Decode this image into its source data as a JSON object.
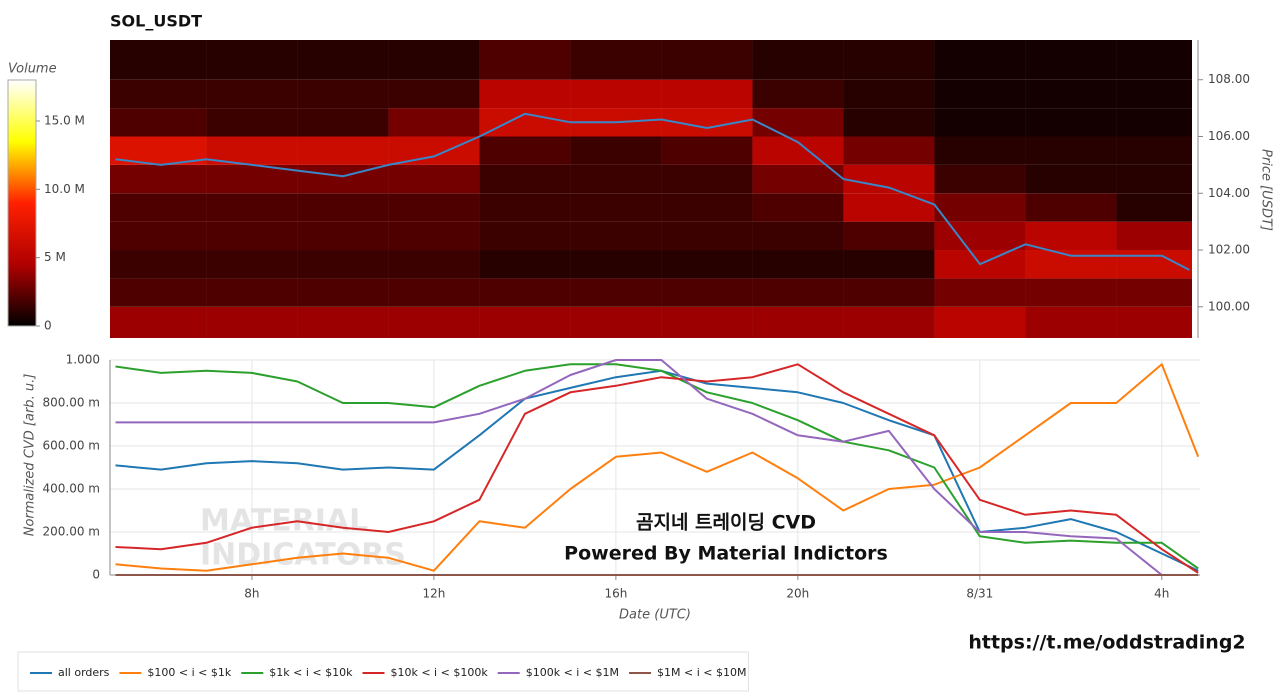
{
  "chart_data": [
    {
      "type": "heatmap",
      "title": "SOL_USDT",
      "xlim": [
        4.88,
        28.66
      ],
      "ylim": [
        98.9,
        109.4
      ],
      "ylabel": "Price [USDT]",
      "yticks": [
        {
          "value": 100,
          "label": "100.00"
        },
        {
          "value": 102,
          "label": "102.00"
        },
        {
          "value": 104,
          "label": "104.00"
        },
        {
          "value": 106,
          "label": "106.00"
        },
        {
          "value": 108,
          "label": "108.00"
        }
      ],
      "x_edges": [
        4.88,
        7,
        9,
        11,
        13,
        15,
        17,
        19,
        21,
        23,
        25,
        27,
        28.66
      ],
      "y_edges": [
        98.9,
        100,
        101,
        102,
        103,
        104,
        105,
        106,
        107,
        108,
        109.4
      ],
      "values": [
        [
          4,
          4,
          4,
          4,
          4,
          4,
          4,
          4,
          4,
          5,
          4,
          4
        ],
        [
          2,
          2,
          2,
          2,
          2,
          2,
          2,
          2,
          2,
          3,
          3,
          3
        ],
        [
          1.5,
          1.5,
          1.5,
          1.5,
          1,
          1,
          1,
          1,
          1,
          5,
          6,
          6
        ],
        [
          2,
          2,
          2,
          2,
          1.5,
          1.5,
          1.5,
          1.5,
          2,
          4,
          5,
          4
        ],
        [
          2,
          2,
          2,
          2,
          1.5,
          1.5,
          1.5,
          2,
          5,
          3,
          2,
          1
        ],
        [
          3,
          3,
          3,
          3,
          1.5,
          1.5,
          1.5,
          3,
          5,
          1.5,
          1,
          1
        ],
        [
          7,
          6,
          6,
          6,
          2,
          1.5,
          2,
          5,
          3,
          1,
          1,
          1
        ],
        [
          2,
          1.5,
          1.5,
          3,
          6,
          6,
          6,
          3,
          1,
          0.5,
          0.5,
          0.5
        ],
        [
          1.5,
          1.5,
          1.5,
          1.5,
          5,
          5,
          5,
          1.5,
          1,
          0.5,
          0.5,
          0.5
        ],
        [
          1,
          1,
          1,
          1,
          2,
          1.5,
          1.5,
          1,
          1,
          0.5,
          0.5,
          0.5
        ]
      ],
      "colormap": [
        "#000000",
        "#b00000",
        "#ff2000",
        "#ffff00",
        "#ffffff"
      ],
      "colorbar": {
        "label": "Volume",
        "lim": [
          0,
          18
        ],
        "ticks": [
          0,
          {
            "value": 5,
            "label": "5 M"
          },
          {
            "value": 10,
            "label": "10.0 M"
          },
          {
            "value": 15,
            "label": "15.0 M"
          }
        ]
      },
      "price_line": {
        "color": "#3a86c8",
        "x": [
          5,
          6,
          7,
          8,
          9,
          10,
          11,
          12,
          13,
          14,
          15,
          16,
          17,
          18,
          19,
          20,
          21,
          22,
          23,
          24,
          25,
          26,
          27,
          28,
          28.6
        ],
        "values": [
          105.2,
          105.0,
          105.2,
          105.0,
          104.8,
          104.6,
          105.0,
          105.3,
          106.0,
          106.8,
          106.5,
          106.5,
          106.6,
          106.3,
          106.6,
          105.8,
          104.5,
          104.2,
          103.6,
          101.5,
          102.2,
          101.8,
          101.8,
          101.8,
          101.3
        ]
      }
    },
    {
      "type": "line",
      "xlabel": "Date (UTC)",
      "ylabel": "Normalized CVD [arb. u.]",
      "xlim": [
        4.88,
        28.84
      ],
      "ylim": [
        0,
        1
      ],
      "grid": true,
      "legend": "bottom",
      "xticks": [
        {
          "value": 8,
          "label": "8h"
        },
        {
          "value": 12,
          "label": "12h"
        },
        {
          "value": 16,
          "label": "16h"
        },
        {
          "value": 20,
          "label": "20h"
        },
        {
          "value": 24,
          "label": "8/31"
        },
        {
          "value": 28,
          "label": "4h"
        }
      ],
      "yticks": [
        0,
        {
          "value": 0.2,
          "label": "200.00 m"
        },
        {
          "value": 0.4,
          "label": "400.00 m"
        },
        {
          "value": 0.6,
          "label": "600.00 m"
        },
        {
          "value": 0.8,
          "label": "800.00 m"
        },
        {
          "value": 1,
          "label": "1.000"
        }
      ],
      "x": [
        5,
        6,
        7,
        8,
        9,
        10,
        11,
        12,
        13,
        14,
        15,
        16,
        17,
        18,
        19,
        20,
        21,
        22,
        23,
        24,
        25,
        26,
        27,
        28,
        28.8
      ],
      "series": [
        {
          "name": "all orders",
          "color": "#1f77b4",
          "values": [
            0.51,
            0.49,
            0.52,
            0.53,
            0.52,
            0.49,
            0.5,
            0.49,
            0.65,
            0.82,
            0.87,
            0.92,
            0.95,
            0.89,
            0.87,
            0.85,
            0.8,
            0.72,
            0.65,
            0.2,
            0.22,
            0.26,
            0.2,
            0.1,
            0.02
          ]
        },
        {
          "name": "$100 < i < $1k",
          "color": "#ff7f0e",
          "values": [
            0.05,
            0.03,
            0.02,
            0.05,
            0.08,
            0.1,
            0.08,
            0.02,
            0.25,
            0.22,
            0.4,
            0.55,
            0.57,
            0.48,
            0.57,
            0.45,
            0.3,
            0.4,
            0.42,
            0.5,
            0.65,
            0.8,
            0.8,
            0.98,
            0.55
          ]
        },
        {
          "name": "$1k < i < $10k",
          "color": "#2ca02c",
          "values": [
            0.97,
            0.94,
            0.95,
            0.94,
            0.9,
            0.8,
            0.8,
            0.78,
            0.88,
            0.95,
            0.98,
            0.98,
            0.95,
            0.85,
            0.8,
            0.72,
            0.62,
            0.58,
            0.5,
            0.18,
            0.15,
            0.16,
            0.15,
            0.15,
            0.03
          ]
        },
        {
          "name": "$10k < i < $100k",
          "color": "#d62728",
          "values": [
            0.13,
            0.12,
            0.15,
            0.22,
            0.25,
            0.22,
            0.2,
            0.25,
            0.35,
            0.75,
            0.85,
            0.88,
            0.92,
            0.9,
            0.92,
            0.98,
            0.85,
            0.75,
            0.65,
            0.35,
            0.28,
            0.3,
            0.28,
            0.12,
            0.01
          ]
        },
        {
          "name": "$100k < i < $1M",
          "color": "#9467bd",
          "values": [
            0.71,
            0.71,
            0.71,
            0.71,
            0.71,
            0.71,
            0.71,
            0.71,
            0.75,
            0.82,
            0.93,
            1,
            1,
            0.82,
            0.75,
            0.65,
            0.62,
            0.67,
            0.4,
            0.2,
            0.2,
            0.18,
            0.17,
            0,
            0
          ]
        },
        {
          "name": "$1M < i < $10M",
          "color": "#8c564b",
          "values": [
            0,
            0,
            0,
            0,
            0,
            0,
            0,
            0,
            0,
            0,
            0,
            0,
            0,
            0,
            0,
            0,
            0,
            0,
            0,
            0,
            0,
            0,
            0,
            0,
            0
          ]
        }
      ],
      "watermark": [
        "MATERIAL",
        "INDICATORS"
      ],
      "annotations": [
        "곰지네 트레이딩 CVD",
        "Powered By Material Indictors"
      ]
    }
  ],
  "footer_link": "https://t.me/oddstrading2"
}
